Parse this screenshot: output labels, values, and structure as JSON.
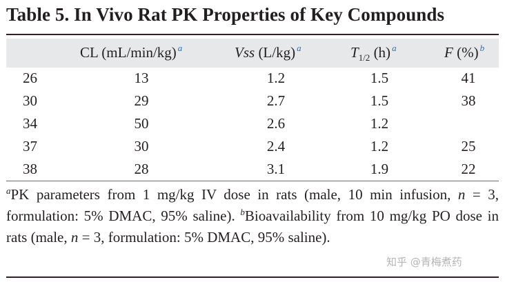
{
  "title": "Table 5. In Vivo Rat PK Properties of Key Compounds",
  "headers": {
    "cl": {
      "label": "CL (mL/min/kg)",
      "sup": "a"
    },
    "vss": {
      "label_italic": "Vss",
      "label_rest": " (L/kg)",
      "sup": "a"
    },
    "t12": {
      "label_italic": "T",
      "sub": "1/2",
      "label_rest": " (h)",
      "sup": "a"
    },
    "f": {
      "label_italic": "F",
      "label_rest": " (%)",
      "sup": "b"
    }
  },
  "rows": [
    {
      "compound": "26",
      "cl": "13",
      "vss": "1.2",
      "t12": "1.5",
      "f": "41"
    },
    {
      "compound": "30",
      "cl": "29",
      "vss": "2.7",
      "t12": "1.5",
      "f": "38"
    },
    {
      "compound": "34",
      "cl": "50",
      "vss": "2.6",
      "t12": "1.2",
      "f": ""
    },
    {
      "compound": "37",
      "cl": "30",
      "vss": "2.4",
      "t12": "1.2",
      "f": "25"
    },
    {
      "compound": "38",
      "cl": "28",
      "vss": "3.1",
      "t12": "1.9",
      "f": "22"
    }
  ],
  "footnotes": {
    "a_marker": "a",
    "a_text_1": "PK parameters from 1 mg/kg IV dose in rats (male, 10 min infusion, ",
    "a_n": "n",
    "a_text_2": " = 3, formulation: 5% DMAC, 95% saline). ",
    "b_marker": "b",
    "b_text_1": "Bioavailability from 10 mg/kg PO dose in rats (male, ",
    "b_n": "n",
    "b_text_2": " = 3, formulation: 5% DMAC, 95% saline)."
  },
  "watermark": "知乎 @青梅煮药",
  "colors": {
    "rule": "#3b1b24",
    "header_band": "#e7e8ea",
    "superscript": "#2e6db4"
  }
}
